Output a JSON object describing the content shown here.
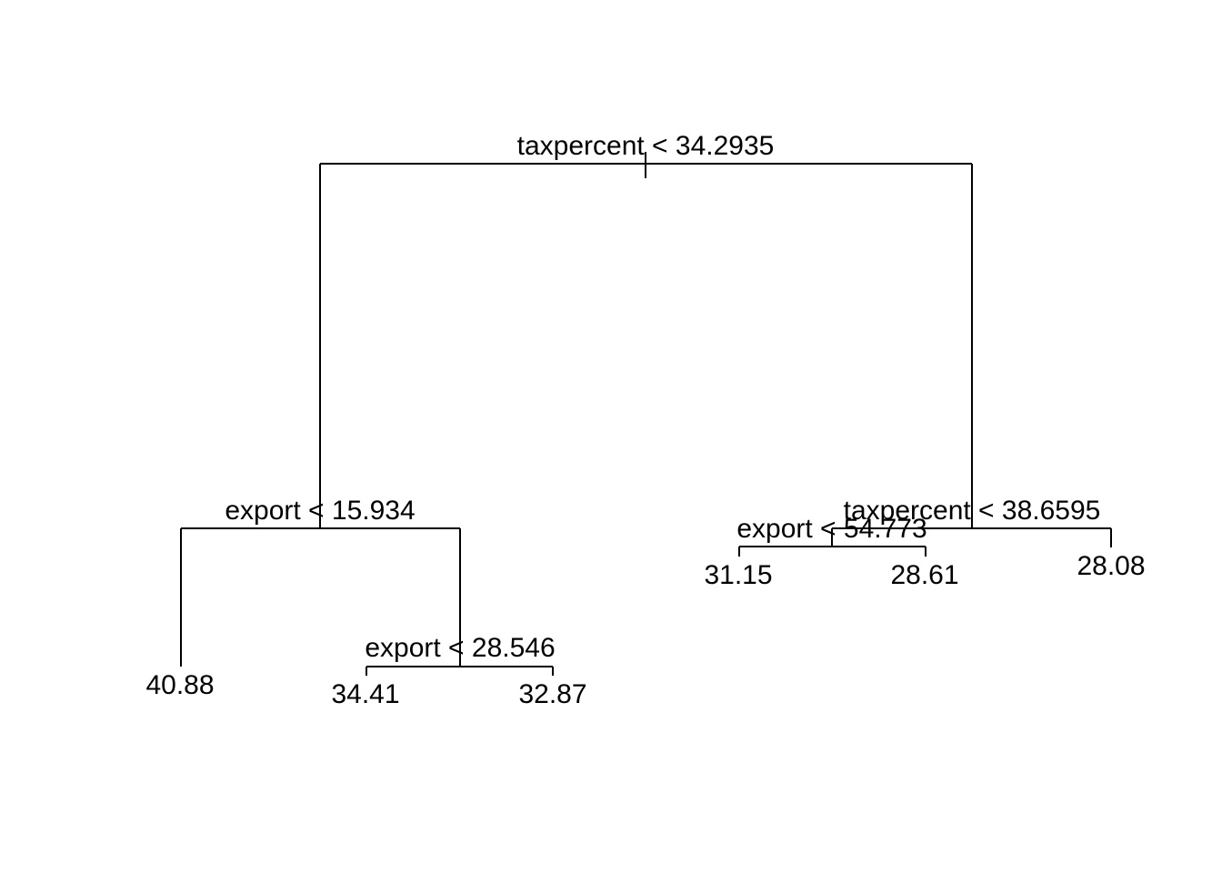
{
  "tree": {
    "root": {
      "split": "taxpercent < 34.2935",
      "left": {
        "split": "export < 15.934",
        "left": {
          "leaf": "40.88"
        },
        "right": {
          "split": "export < 28.546",
          "left": {
            "leaf": "34.41"
          },
          "right": {
            "leaf": "32.87"
          }
        }
      },
      "right": {
        "split": "taxpercent < 38.6595",
        "left": {
          "split": "export < 54.773",
          "left": {
            "leaf": "31.15"
          },
          "right": {
            "leaf": "28.61"
          }
        },
        "right": {
          "leaf": "28.08"
        }
      }
    }
  },
  "colors": {
    "line": "#000000",
    "text": "#000000",
    "background": "#ffffff"
  }
}
